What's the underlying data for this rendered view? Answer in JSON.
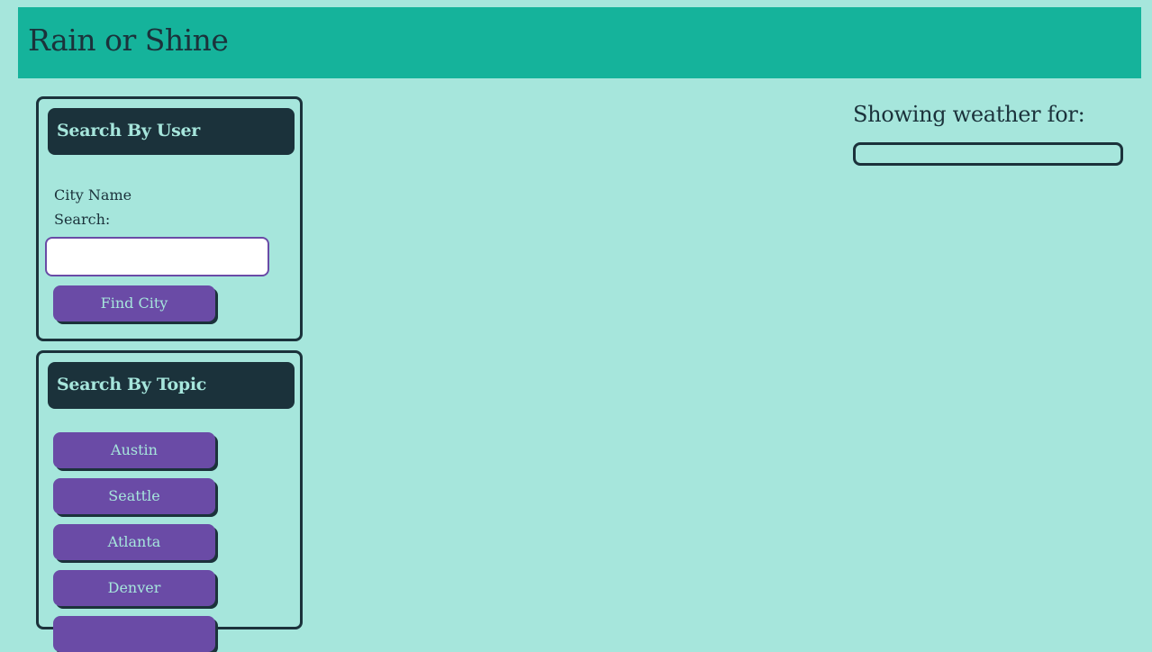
{
  "header": {
    "title": "Rain or Shine"
  },
  "search_user": {
    "heading": "Search By User",
    "label": "City Name Search:",
    "input_value": "",
    "button_label": "Find City"
  },
  "search_topic": {
    "heading": "Search By Topic",
    "cities": [
      "Austin",
      "Seattle",
      "Atlanta",
      "Denver"
    ]
  },
  "weather": {
    "heading": "Showing weather for:"
  },
  "colors": {
    "background": "#a6e6dc",
    "header": "#15b39b",
    "dark": "#1b323b",
    "button": "#6a4ba6"
  }
}
